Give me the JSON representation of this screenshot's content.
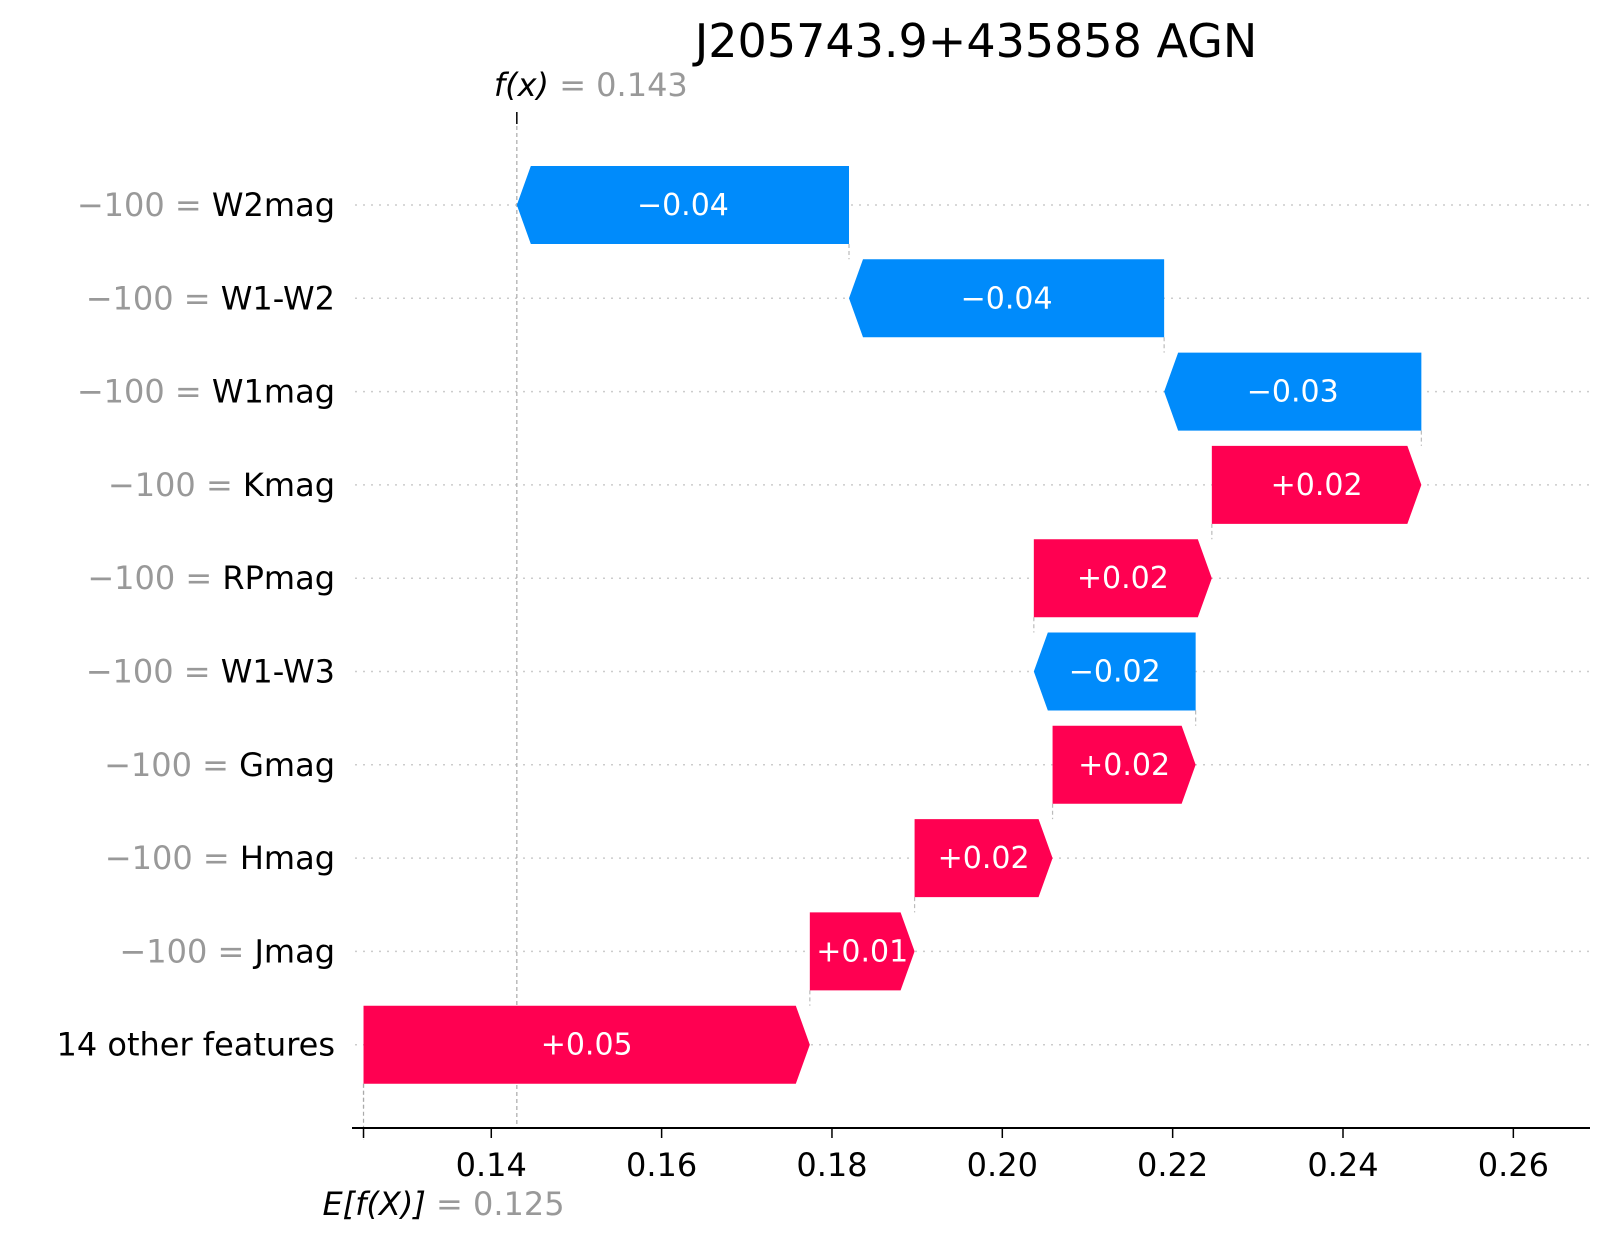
{
  "chart_data": {
    "type": "waterfall",
    "title": "J205743.9+435858 AGN",
    "fx": {
      "label": "f(x)",
      "value": "0.143",
      "numeric": 0.143
    },
    "ex": {
      "label": "E[f(X)]",
      "value": "0.125",
      "numeric": 0.125
    },
    "xlim": [
      0.124,
      0.269
    ],
    "xticks": [
      {
        "value": 0.14,
        "label": "0.14"
      },
      {
        "value": 0.16,
        "label": "0.16"
      },
      {
        "value": 0.18,
        "label": "0.18"
      },
      {
        "value": 0.2,
        "label": "0.20"
      },
      {
        "value": 0.22,
        "label": "0.22"
      },
      {
        "value": 0.24,
        "label": "0.24"
      },
      {
        "value": 0.26,
        "label": "0.26"
      }
    ],
    "features": [
      {
        "value": "−100",
        "name": "W2mag",
        "start": 0.182,
        "end": 0.143,
        "label": "−0.04"
      },
      {
        "value": "−100",
        "name": "W1-W2",
        "start": 0.219,
        "end": 0.182,
        "label": "−0.04"
      },
      {
        "value": "−100",
        "name": "W1mag",
        "start": 0.2492,
        "end": 0.219,
        "label": "−0.03"
      },
      {
        "value": "−100",
        "name": "Kmag",
        "start": 0.2246,
        "end": 0.2492,
        "label": "+0.02"
      },
      {
        "value": "−100",
        "name": "RPmag",
        "start": 0.2037,
        "end": 0.2246,
        "label": "+0.02"
      },
      {
        "value": "−100",
        "name": "W1-W3",
        "start": 0.2227,
        "end": 0.2037,
        "label": "−0.02"
      },
      {
        "value": "−100",
        "name": "Gmag",
        "start": 0.2059,
        "end": 0.2227,
        "label": "+0.02"
      },
      {
        "value": "−100",
        "name": "Hmag",
        "start": 0.1897,
        "end": 0.2059,
        "label": "+0.02"
      },
      {
        "value": "−100",
        "name": "Jmag",
        "start": 0.1774,
        "end": 0.1897,
        "label": "+0.01"
      },
      {
        "value": "",
        "name": "14 other features",
        "start": 0.125,
        "end": 0.1774,
        "label": "+0.05"
      }
    ],
    "colors": {
      "positive": "#ff0051",
      "negative": "#008bfb",
      "grid": "#cccccc",
      "value_text": "#999999"
    }
  }
}
